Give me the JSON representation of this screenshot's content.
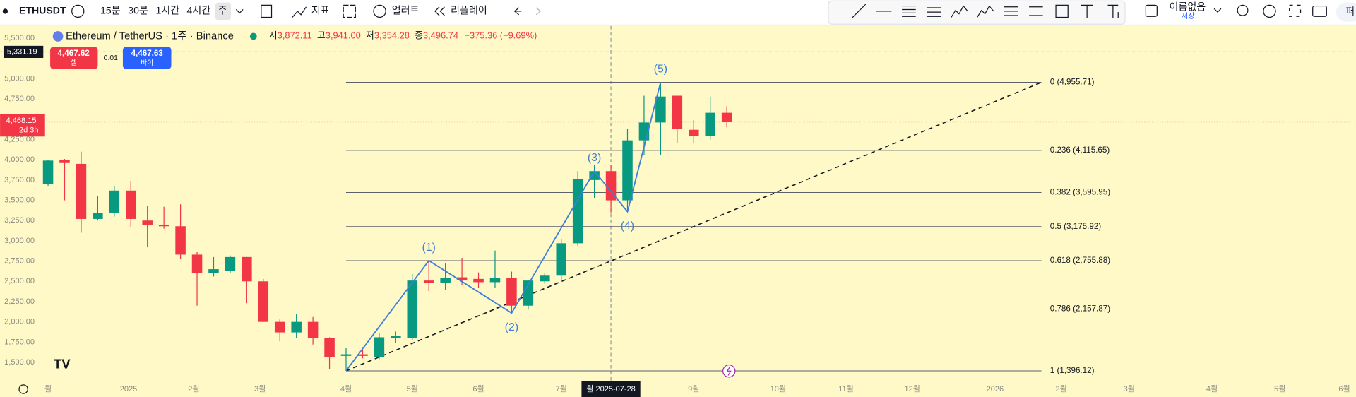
{
  "toolbar": {
    "symbol": "ETHUSDT",
    "intervals": [
      "15분",
      "30분",
      "1시간",
      "4시간",
      "주"
    ],
    "indicators": "지표",
    "alert": "얼러트",
    "replay": "리플레이",
    "layout_name": "이름없음",
    "save": "저장",
    "publish": "퍼"
  },
  "symbol_info": {
    "title": "Ethereum / TetherUS · 1주 · Binance",
    "open_label": "시",
    "open": "3,872.11",
    "high_label": "고",
    "high": "3,941.00",
    "low_label": "저",
    "low": "3,354.28",
    "close_label": "종",
    "close": "3,496.74",
    "change": "−375.36 (−9.69%)"
  },
  "trade": {
    "sell_price": "4,467.62",
    "sell": "셀",
    "spread": "0.01",
    "buy_price": "4,467.63",
    "buy": "바이"
  },
  "chart_data": {
    "type": "candlestick",
    "up_color": "#089981",
    "down_color": "#f23645",
    "candles": [
      [
        3700,
        4000,
        3680,
        3990
      ],
      [
        4000,
        4010,
        3500,
        3960
      ],
      [
        3950,
        4100,
        3100,
        3270
      ],
      [
        3270,
        3550,
        3250,
        3340
      ],
      [
        3340,
        3680,
        3300,
        3620
      ],
      [
        3620,
        3740,
        3170,
        3270
      ],
      [
        3250,
        3430,
        2920,
        3200
      ],
      [
        3200,
        3420,
        3150,
        3180
      ],
      [
        3180,
        3450,
        2780,
        2830
      ],
      [
        2830,
        2860,
        2200,
        2600
      ],
      [
        2600,
        2800,
        2560,
        2650
      ],
      [
        2630,
        2820,
        2600,
        2800
      ],
      [
        2800,
        2800,
        2230,
        2500
      ],
      [
        2500,
        2530,
        2000,
        2000
      ],
      [
        2000,
        2030,
        1760,
        1870
      ],
      [
        1870,
        2100,
        1800,
        2000
      ],
      [
        2000,
        2060,
        1720,
        1800
      ],
      [
        1800,
        1810,
        1420,
        1570
      ],
      [
        1580,
        1680,
        1396.12,
        1600
      ],
      [
        1600,
        1690,
        1550,
        1580
      ],
      [
        1570,
        1860,
        1540,
        1810
      ],
      [
        1800,
        1880,
        1740,
        1830
      ],
      [
        1800,
        2590,
        1780,
        2510
      ],
      [
        2510,
        2760,
        2380,
        2480
      ],
      [
        2480,
        2720,
        2390,
        2540
      ],
      [
        2550,
        2790,
        2450,
        2520
      ],
      [
        2530,
        2610,
        2420,
        2490
      ],
      [
        2490,
        2880,
        2420,
        2540
      ],
      [
        2540,
        2620,
        2120,
        2200
      ],
      [
        2200,
        2520,
        2150,
        2510
      ],
      [
        2500,
        2600,
        2470,
        2570
      ],
      [
        2570,
        3020,
        2520,
        2970
      ],
      [
        2970,
        3860,
        2940,
        3760
      ],
      [
        3750,
        3940,
        3530,
        3860
      ],
      [
        3860,
        3940,
        3350,
        3500
      ],
      [
        3500,
        4380,
        3360,
        4240
      ],
      [
        4240,
        4790,
        4060,
        4460
      ],
      [
        4460,
        4955.71,
        4060,
        4780
      ],
      [
        4790,
        4790,
        4210,
        4380
      ],
      [
        4370,
        4490,
        4210,
        4290
      ],
      [
        4290,
        4780,
        4250,
        4580
      ],
      [
        4580,
        4660,
        4400,
        4468.15
      ]
    ],
    "xlim": [
      -2.9,
      79
    ],
    "ylim": [
      1276,
      5651
    ],
    "yticks": [
      {
        "value": 1500,
        "label": "1,500.00"
      },
      {
        "value": 1750,
        "label": "1,750.00"
      },
      {
        "value": 2000,
        "label": "2,000.00"
      },
      {
        "value": 2250,
        "label": "2,250.00"
      },
      {
        "value": 2500,
        "label": "2,500.00"
      },
      {
        "value": 2750,
        "label": "2,750.00"
      },
      {
        "value": 3000,
        "label": "3,000.00"
      },
      {
        "value": 3250,
        "label": "3,250.00"
      },
      {
        "value": 3500,
        "label": "3,500.00"
      },
      {
        "value": 3750,
        "label": "3,750.00"
      },
      {
        "value": 4000,
        "label": "4,000.00"
      },
      {
        "value": 4250,
        "label": "4,250.00"
      },
      {
        "value": 4750,
        "label": "4,750.00"
      },
      {
        "value": 5000,
        "label": "5,000.00"
      },
      {
        "value": 5500,
        "label": "5,500.00"
      }
    ],
    "xticks": [
      {
        "value": 0,
        "label": "월"
      },
      {
        "value": 4.86,
        "label": "2025"
      },
      {
        "value": 8.8,
        "label": "2월"
      },
      {
        "value": 12.8,
        "label": "3월"
      },
      {
        "value": 18,
        "label": "4월"
      },
      {
        "value": 22,
        "label": "5월"
      },
      {
        "value": 26,
        "label": "6월"
      },
      {
        "value": 31,
        "label": "7월"
      },
      {
        "value": 39,
        "label": "9월"
      },
      {
        "value": 44.1,
        "label": "10월"
      },
      {
        "value": 48.2,
        "label": "11월"
      },
      {
        "value": 52.2,
        "label": "12월"
      },
      {
        "value": 57.2,
        "label": "2026"
      },
      {
        "value": 61.2,
        "label": "2월"
      },
      {
        "value": 65.3,
        "label": "3월"
      },
      {
        "value": 70.3,
        "label": "4월"
      },
      {
        "value": 74.4,
        "label": "5월"
      },
      {
        "value": 78.3,
        "label": "6월"
      }
    ],
    "fib_span": [
      18,
      60
    ],
    "fib_levels": [
      {
        "value": 4955.71,
        "label": "0 (4,955.71)"
      },
      {
        "value": 4115.65,
        "label": "0.236 (4,115.65)"
      },
      {
        "value": 3595.95,
        "label": "0.382 (3,595.95)"
      },
      {
        "value": 3175.92,
        "label": "0.5 (3,175.92)"
      },
      {
        "value": 2755.88,
        "label": "0.618 (2,755.88)"
      },
      {
        "value": 2157.87,
        "label": "0.786 (2,157.87)"
      },
      {
        "value": 1396.12,
        "label": "1 (1,396.12)"
      }
    ],
    "wave_start": {
      "x": 18,
      "y": 1396.12
    },
    "waves": [
      {
        "label": "(1)",
        "x": 23,
        "y": 2755.88
      },
      {
        "label": "(2)",
        "x": 28,
        "y": 2110
      },
      {
        "label": "(3)",
        "x": 33,
        "y": 3860
      },
      {
        "label": "(4)",
        "x": 35,
        "y": 3360
      },
      {
        "label": "(5)",
        "x": 37,
        "y": 4955.71
      }
    ],
    "trend_line": {
      "x": [
        18,
        60
      ],
      "y": [
        1396.12,
        4955.71
      ]
    },
    "crosshair": {
      "x": 34,
      "y": 5331.19,
      "x_label": "월 2025-07-28",
      "y_label": "5,331.19"
    },
    "last_price": {
      "value": 4468.15,
      "label": "4,468.15",
      "countdown": "2d 3h"
    }
  }
}
